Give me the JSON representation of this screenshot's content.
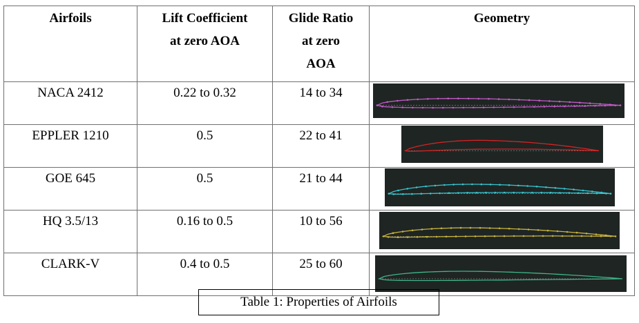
{
  "table": {
    "headers": [
      "Airfoils",
      "Lift Coefficient\nat zero AOA",
      "Glide Ratio\nat zero\nAOA",
      "Geometry"
    ],
    "header_lines": [
      [
        "Airfoils"
      ],
      [
        "Lift Coefficient",
        "at zero AOA"
      ],
      [
        "Glide Ratio",
        "at zero",
        "AOA"
      ],
      [
        "Geometry"
      ]
    ],
    "rows": [
      {
        "airfoil": "NACA 2412",
        "lift": "0.22 to 0.32",
        "glide": "14 to 34",
        "geometry_color": "#c25ac8",
        "geometry_icon": "naca-2412-profile"
      },
      {
        "airfoil": "EPPLER 1210",
        "lift": "0.5",
        "glide": "22 to 41",
        "geometry_color": "#d42424",
        "geometry_icon": "eppler-1210-profile"
      },
      {
        "airfoil": "GOE 645",
        "lift": "0.5",
        "glide": "21 to 44",
        "geometry_color": "#38c4cf",
        "geometry_icon": "goe-645-profile"
      },
      {
        "airfoil": "HQ 3.5/13",
        "lift": "0.16 to 0.5",
        "glide": "10 to 56",
        "geometry_color": "#c9b43a",
        "geometry_icon": "hq-3.5-13-profile"
      },
      {
        "airfoil": "CLARK-V",
        "lift": "0.4 to 0.5",
        "glide": "25 to 60",
        "geometry_color": "#3fb58a",
        "geometry_icon": "clark-v-profile"
      }
    ]
  },
  "caption": "Table 1: Properties of Airfoils",
  "colors": {
    "geometry_background": "#1f2523",
    "border": "#6f6f6f"
  }
}
